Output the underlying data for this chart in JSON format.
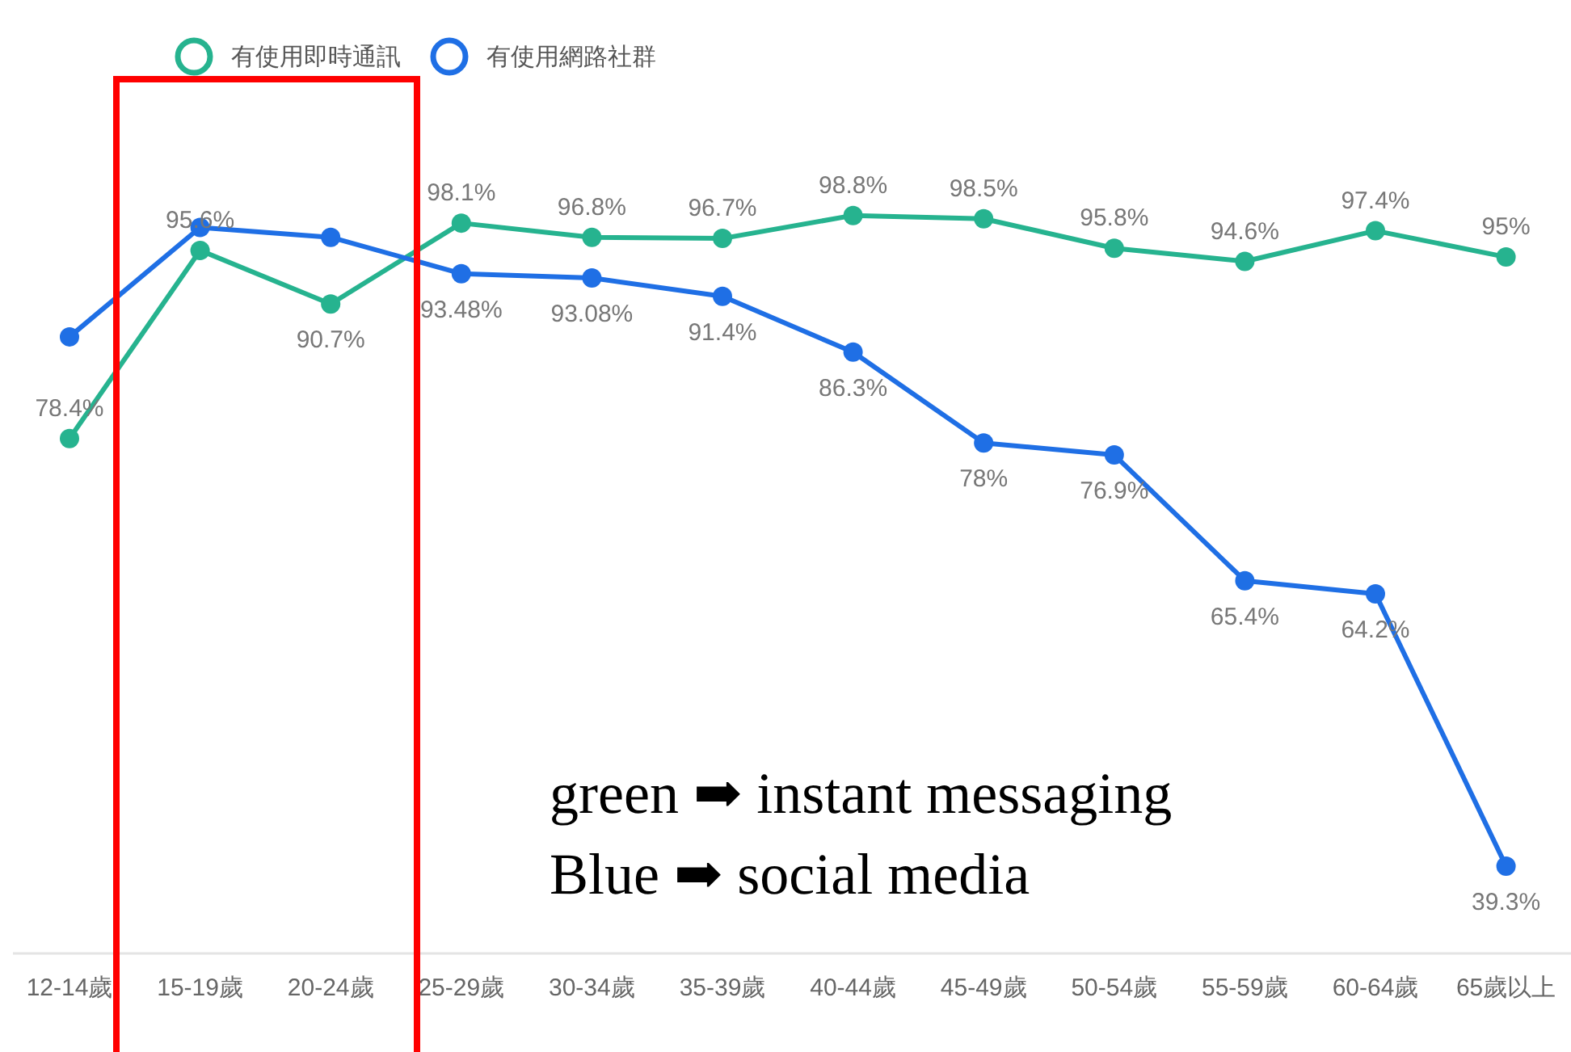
{
  "chart_data": {
    "type": "line",
    "categories": [
      "12-14歲",
      "15-19歲",
      "20-24歲",
      "25-29歲",
      "30-34歲",
      "35-39歲",
      "40-44歲",
      "45-49歲",
      "50-54歲",
      "55-59歲",
      "60-64歲",
      "65歲以上"
    ],
    "series": [
      {
        "name": "有使用即時通訊",
        "color": "#26b38f",
        "values": [
          78.4,
          95.6,
          90.7,
          98.1,
          96.8,
          96.7,
          98.8,
          98.5,
          95.8,
          94.6,
          97.4,
          95
        ],
        "value_labels": [
          "78.4%",
          "95.6%",
          "90.7%",
          "98.1%",
          "96.8%",
          "96.7%",
          "98.8%",
          "98.5%",
          "95.8%",
          "94.6%",
          "97.4%",
          "95%"
        ]
      },
      {
        "name": "有使用網路社群",
        "color": "#1f6fe5",
        "values": [
          87.7,
          97.7,
          96.8,
          93.48,
          93.08,
          91.4,
          86.3,
          78,
          76.9,
          65.4,
          64.2,
          39.3
        ],
        "value_labels": [
          null,
          null,
          null,
          "93.48%",
          "93.08%",
          "91.4%",
          "86.3%",
          "78%",
          "76.9%",
          "65.4%",
          "64.2%",
          "39.3%"
        ]
      }
    ],
    "tick_labels": "x",
    "legend": "top",
    "marker": "circle",
    "line_style": "solid",
    "annotations": [
      "green ➡ instant messaging",
      "Blue ➡ social media"
    ]
  }
}
